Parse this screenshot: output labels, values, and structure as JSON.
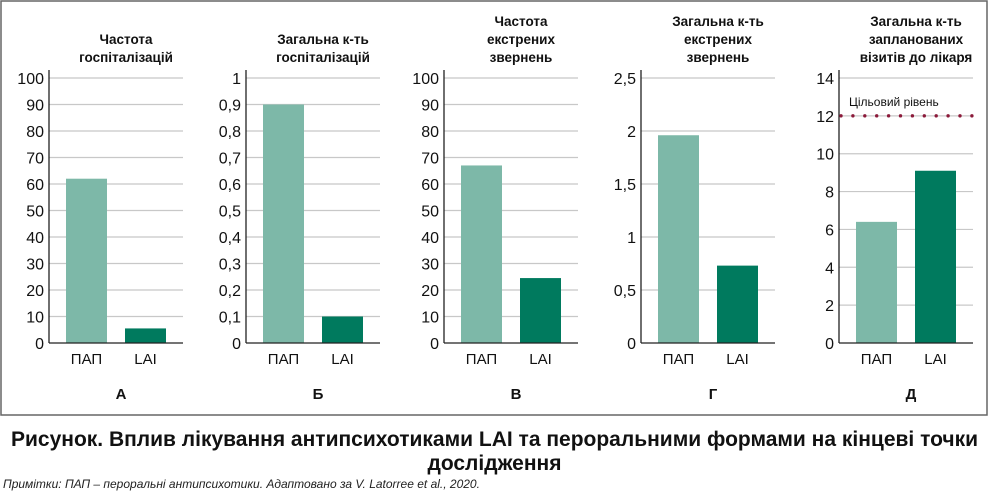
{
  "chart_data": [
    {
      "type": "bar",
      "panel": "А",
      "title": [
        "Частота",
        "госпіталізацій"
      ],
      "categories": [
        "ПАП",
        "LAI"
      ],
      "values": [
        62,
        5.5
      ],
      "ylim": [
        0,
        100
      ],
      "yticks": [
        "0",
        "10",
        "20",
        "30",
        "40",
        "50",
        "60",
        "70",
        "80",
        "90",
        "100"
      ],
      "ytick_values": [
        0,
        10,
        20,
        30,
        40,
        50,
        60,
        70,
        80,
        90,
        100
      ]
    },
    {
      "type": "bar",
      "panel": "Б",
      "title": [
        "Загальна к-ть",
        "госпіталізацій"
      ],
      "categories": [
        "ПАП",
        "LAI"
      ],
      "values": [
        0.9,
        0.1
      ],
      "ylim": [
        0,
        1
      ],
      "yticks": [
        "0",
        "0,1",
        "0,2",
        "0,3",
        "0,4",
        "0,5",
        "0,6",
        "0,7",
        "0,8",
        "0,9",
        "1"
      ],
      "ytick_values": [
        0,
        0.1,
        0.2,
        0.3,
        0.4,
        0.5,
        0.6,
        0.7,
        0.8,
        0.9,
        1
      ]
    },
    {
      "type": "bar",
      "panel": "В",
      "title": [
        "Частота",
        "екстрених",
        "звернень"
      ],
      "categories": [
        "ПАП",
        "LAI"
      ],
      "values": [
        67,
        24.5
      ],
      "ylim": [
        0,
        100
      ],
      "yticks": [
        "0",
        "10",
        "20",
        "30",
        "40",
        "50",
        "60",
        "70",
        "80",
        "90",
        "100"
      ],
      "ytick_values": [
        0,
        10,
        20,
        30,
        40,
        50,
        60,
        70,
        80,
        90,
        100
      ]
    },
    {
      "type": "bar",
      "panel": "Г",
      "title": [
        "Загальна к-ть",
        "екстрених",
        "звернень"
      ],
      "categories": [
        "ПАП",
        "LAI"
      ],
      "values": [
        1.96,
        0.73
      ],
      "ylim": [
        0,
        2.5
      ],
      "yticks": [
        "0",
        "0,5",
        "1",
        "1,5",
        "2",
        "2,5"
      ],
      "ytick_values": [
        0,
        0.5,
        1,
        1.5,
        2,
        2.5
      ]
    },
    {
      "type": "bar",
      "panel": "Д",
      "title": [
        "Загальна к-ть",
        "запланованих",
        "візитів до лікаря"
      ],
      "categories": [
        "ПАП",
        "LAI"
      ],
      "values": [
        6.4,
        9.1
      ],
      "ylim": [
        0,
        14
      ],
      "yticks": [
        "0",
        "2",
        "4",
        "6",
        "8",
        "10",
        "12",
        "14"
      ],
      "ytick_values": [
        0,
        2,
        4,
        6,
        8,
        10,
        12,
        14
      ],
      "target": {
        "label": "Цільовий рівень",
        "value": 12
      }
    }
  ],
  "colors": {
    "pap": "#7db8a8",
    "lai": "#007a5e",
    "target": "#8b1a3a",
    "grid": "#c8c8c8"
  },
  "caption": "Рисунок. Вплив лікування антипсихотиками LAI та пероральними формами на кінцеві точки дослідження",
  "note": "Примітки: ПАП – пероральні антипсихотики. Адаптовано за V. Latorree et al., 2020."
}
